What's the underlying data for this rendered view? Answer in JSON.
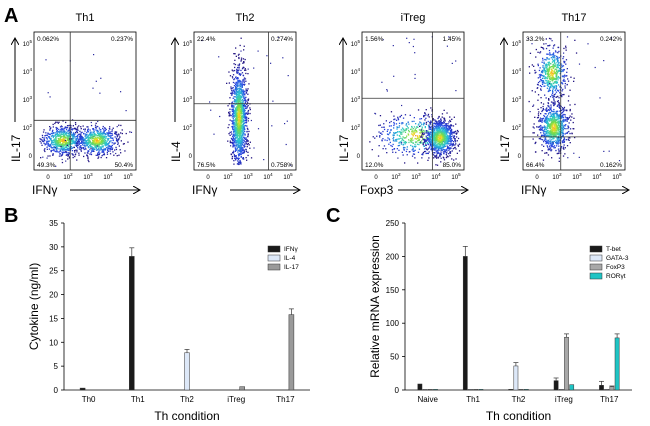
{
  "panel_letters": [
    "A",
    "B",
    "C"
  ],
  "chart_data": [
    {
      "type": "scatter",
      "subtype": "flow-cytometry-quadrant-plot",
      "panel": "A",
      "tick_labels": [
        "0",
        "10^2",
        "10^3",
        "10^4",
        "10^5"
      ],
      "plots": [
        {
          "title": "Th1",
          "xlabel": "IFNγ",
          "ylabel": "IL-17",
          "quadrants": {
            "upper_left": "0.062%",
            "upper_right": "0.237%",
            "lower_left": "49.3%",
            "lower_right": "50.4%"
          },
          "populations": [
            {
              "x": 1.3,
              "y": 1.0,
              "spread_x": 0.55,
              "spread_y": 0.28,
              "weight": 0.5
            },
            {
              "x": 3.1,
              "y": 1.0,
              "spread_x": 0.55,
              "spread_y": 0.28,
              "weight": 0.5
            }
          ]
        },
        {
          "title": "Th2",
          "xlabel": "IFNγ",
          "ylabel": "IL-4",
          "quadrants": {
            "upper_left": "22.4%",
            "upper_right": "0.274%",
            "lower_left": "76.5%",
            "lower_right": "0.758%"
          },
          "populations": [
            {
              "x": 2.15,
              "y": 1.9,
              "spread_x": 0.22,
              "spread_y": 0.95,
              "weight": 1.0
            }
          ]
        },
        {
          "title": "iTreg",
          "xlabel": "Foxp3",
          "ylabel": "IL-17",
          "quadrants": {
            "upper_left": "1.56%",
            "upper_right": "1.45%",
            "lower_left": "12.0%",
            "lower_right": "85.0%"
          },
          "populations": [
            {
              "x": 2.6,
              "y": 1.2,
              "spread_x": 1.0,
              "spread_y": 0.4,
              "weight": 0.35
            },
            {
              "x": 3.9,
              "y": 1.1,
              "spread_x": 0.4,
              "spread_y": 0.33,
              "weight": 0.65
            }
          ]
        },
        {
          "title": "Th17",
          "xlabel": "IFNγ",
          "ylabel": "IL-17",
          "quadrants": {
            "upper_left": "33.2%",
            "upper_right": "0.242%",
            "lower_left": "66.4%",
            "lower_right": "0.162%"
          },
          "populations": [
            {
              "x": 1.3,
              "y": 3.6,
              "spread_x": 0.4,
              "spread_y": 0.5,
              "weight": 0.38
            },
            {
              "x": 1.4,
              "y": 1.5,
              "spread_x": 0.4,
              "spread_y": 0.45,
              "weight": 0.62
            }
          ]
        }
      ]
    },
    {
      "type": "bar",
      "panel": "B",
      "categories": [
        "Th0",
        "Th1",
        "Th2",
        "iTreg",
        "Th17"
      ],
      "series": [
        {
          "name": "IFNγ",
          "color": "#1a1a1a",
          "values": [
            0.4,
            28.0,
            0,
            0,
            0
          ],
          "errors": [
            0,
            1.8,
            0,
            0,
            0
          ]
        },
        {
          "name": "IL-4",
          "color": "#dde8f8",
          "values": [
            0,
            0,
            7.8,
            0,
            0
          ],
          "errors": [
            0,
            0,
            0.7,
            0,
            0
          ]
        },
        {
          "name": "IL-17",
          "color": "#9a9a9a",
          "values": [
            0,
            0,
            0,
            0.7,
            15.8
          ],
          "errors": [
            0,
            0,
            0,
            0,
            1.2
          ]
        }
      ],
      "title": "",
      "xlabel": "Th condition",
      "ylabel": "Cytokine (ng/ml)",
      "ylim": [
        0,
        35
      ],
      "yticks": [
        0,
        5,
        10,
        15,
        20,
        25,
        30,
        35
      ],
      "legend": "top-right"
    },
    {
      "type": "bar",
      "panel": "C",
      "categories": [
        "Naive",
        "Th1",
        "Th2",
        "iTreg",
        "Th17"
      ],
      "series": [
        {
          "name": "T-bet",
          "color": "#1a1a1a",
          "values": [
            9,
            200,
            1,
            14,
            7
          ],
          "errors": [
            0,
            15,
            0,
            4,
            6
          ]
        },
        {
          "name": "GATA-3",
          "color": "#dde8f8",
          "values": [
            1,
            1,
            36,
            1,
            1
          ],
          "errors": [
            0,
            0,
            5,
            0,
            0
          ]
        },
        {
          "name": "FoxP3",
          "color": "#a8a8a8",
          "values": [
            1,
            1,
            1,
            79,
            5
          ],
          "errors": [
            0,
            0,
            0,
            5,
            1
          ]
        },
        {
          "name": "RORγt",
          "color": "#1fc4c4",
          "values": [
            1,
            1,
            1,
            8,
            78
          ],
          "errors": [
            0,
            0,
            0,
            0,
            6
          ]
        }
      ],
      "title": "",
      "xlabel": "Th condition",
      "ylabel": "Relative mRNA expression",
      "ylim": [
        0,
        250
      ],
      "yticks": [
        0,
        50,
        100,
        150,
        200,
        250
      ],
      "legend": "top-right"
    }
  ]
}
